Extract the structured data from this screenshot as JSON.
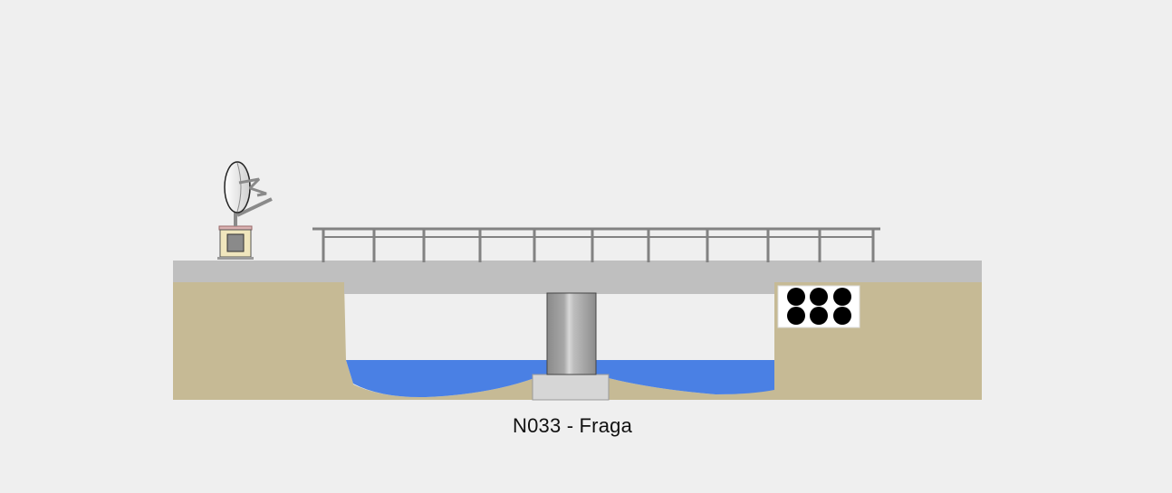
{
  "station": {
    "label": "N033 - Fraga"
  },
  "colors": {
    "background": "#efefef",
    "ground": "#c6ba95",
    "deck": "#bfbfbf",
    "water": "#4a80e4",
    "railing": "#828282",
    "pier": "#9e9e9e",
    "footing": "#d6d6d6",
    "sensor_box": "#f0e6bd",
    "sensor_cap": "#d9b0b0",
    "culvert_holes": "#000000"
  },
  "components": {
    "antenna": "satellite-dish-icon",
    "station_box": "station-box-icon",
    "culvert": "culvert-pipes-icon",
    "pier": "bridge-pier",
    "railing": "bridge-railing"
  }
}
